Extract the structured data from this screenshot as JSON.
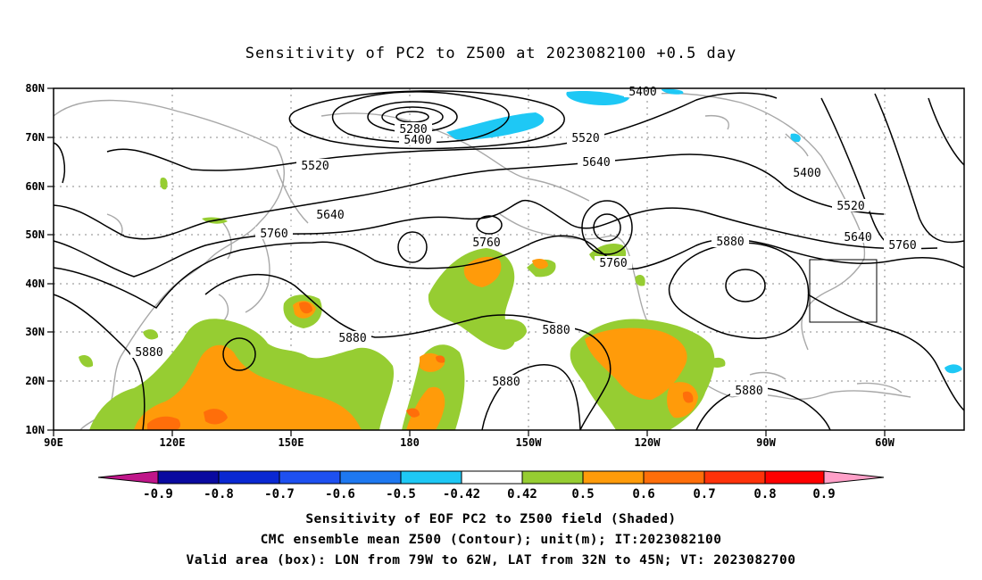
{
  "title": "Sensitivity of PC2 to Z500 at 2023082100 +0.5 day",
  "map": {
    "lon_labels": [
      "90E",
      "120E",
      "150E",
      "180",
      "150W",
      "120W",
      "90W",
      "60W"
    ],
    "lat_labels": [
      "80N",
      "70N",
      "60N",
      "50N",
      "40N",
      "30N",
      "20N",
      "10N"
    ],
    "contour_labels": [
      "5280",
      "5400",
      "5400",
      "5400",
      "5520",
      "5520",
      "5520",
      "5640",
      "5640",
      "5640",
      "5760",
      "5760",
      "5760",
      "5760",
      "5880",
      "5880",
      "5880",
      "5880",
      "5880",
      "5880"
    ],
    "valid_box": {
      "lon_from": "79W",
      "lon_to": "62W",
      "lat_from": "32N",
      "lat_to": "45N"
    }
  },
  "colorbar": {
    "labels": [
      "-0.9",
      "-0.8",
      "-0.7",
      "-0.6",
      "-0.5",
      "-0.42",
      "0.42",
      "0.5",
      "0.6",
      "0.7",
      "0.8",
      "0.9"
    ],
    "colors": [
      "#c0168a",
      "#0a0aa0",
      "#0a28d2",
      "#1e50f0",
      "#1e78f0",
      "#1ec8f5",
      "#ffffff",
      "#96cd32",
      "#ff9b0a",
      "#ff6e0a",
      "#ff320a",
      "#ff0000",
      "#ffa0c8"
    ]
  },
  "captions": [
    "Sensitivity of EOF PC2 to Z500 field (Shaded)",
    "CMC ensemble mean Z500 (Contour); unit(m); IT:2023082100",
    "Valid area (box): LON from 79W to 62W, LAT from 32N to 45N; VT: 2023082700"
  ]
}
